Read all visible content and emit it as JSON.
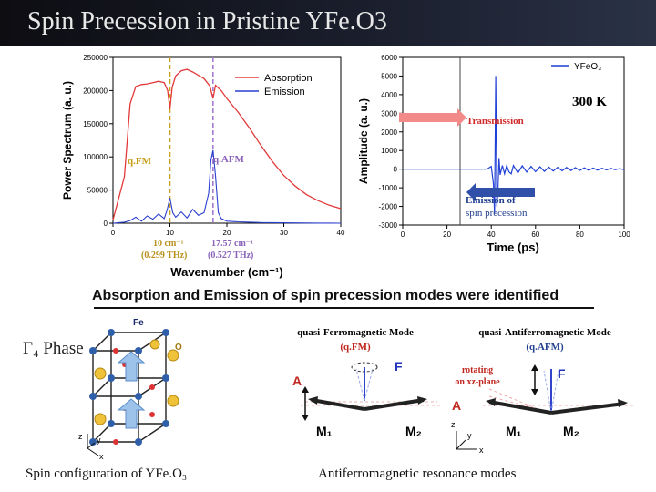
{
  "slide_title": "Spin Precession in Pristine YFe.O3",
  "colors": {
    "absorption": "#e23a3a",
    "emission": "#2a3fcf",
    "qfm": "#c9a21e",
    "qafm": "#a57cd1",
    "yfeo3": "#1f3fd6",
    "transmission": "#f28a8a",
    "emission_arrow": "#2f4fa8"
  },
  "left_chart": {
    "legend": {
      "absorption": "Absorption",
      "emission": "Emission"
    },
    "ylabel": "Power Spectrum (a. u.)",
    "xlabel": "Wavenumber (cm⁻¹)",
    "yticks": [
      "0",
      "50000",
      "100000",
      "150000",
      "200000",
      "250000"
    ],
    "xticks": [
      "0",
      "10",
      "20",
      "30",
      "40"
    ],
    "qfm_label": "q.FM",
    "qafm_label": "q.AFM",
    "qfm_freq1": "10 cm⁻¹",
    "qfm_freq2": "(0.299 THz)",
    "qafm_freq1": "17.57 cm⁻¹",
    "qafm_freq2": "(0.527 THz)"
  },
  "right_chart": {
    "legend": "YFeO₃",
    "temperature": "300 K",
    "ylabel": "Amplitude (a. u.)",
    "xlabel": "Time (ps)",
    "yticks": [
      "-3000",
      "-2000",
      "-1000",
      "0",
      "1000",
      "2000",
      "3000",
      "4000",
      "5000",
      "6000"
    ],
    "xticks": [
      "0",
      "20",
      "40",
      "60",
      "80",
      "100"
    ],
    "transmission_label": "Transmission",
    "emission_label1": "Emission of",
    "emission_label2": "spin precession"
  },
  "chart_data": [
    {
      "type": "line",
      "title": "",
      "xlabel": "Wavenumber (cm⁻¹)",
      "ylabel": "Power Spectrum (a. u.)",
      "xlim": [
        0,
        40
      ],
      "ylim": [
        0,
        250000
      ],
      "series": [
        {
          "name": "Absorption",
          "x": [
            0,
            2,
            3,
            4,
            5,
            6,
            7,
            8,
            9,
            9.6,
            10,
            10.4,
            11,
            12,
            13,
            14,
            15,
            16,
            17,
            17.57,
            18,
            19,
            20,
            22,
            24,
            26,
            28,
            30,
            32,
            34,
            36,
            38,
            40
          ],
          "values": [
            5000,
            70000,
            180000,
            206000,
            209000,
            210000,
            212000,
            214000,
            212000,
            200000,
            172000,
            205000,
            222000,
            230000,
            232000,
            228000,
            223000,
            218000,
            207000,
            188000,
            208000,
            200000,
            188000,
            167000,
            143000,
            117000,
            93000,
            72000,
            56000,
            43000,
            34000,
            27000,
            22000
          ]
        },
        {
          "name": "Emission",
          "x": [
            0,
            2,
            3,
            4,
            5,
            6,
            7,
            8,
            9,
            9.5,
            10,
            10.5,
            11,
            12,
            13,
            14,
            15,
            16,
            16.8,
            17.2,
            17.57,
            18,
            18.5,
            19,
            20,
            22,
            24,
            26,
            28,
            30,
            32,
            34,
            36,
            38,
            40
          ],
          "values": [
            0,
            1500,
            4000,
            9000,
            3000,
            11000,
            6000,
            14000,
            7000,
            20000,
            38000,
            16000,
            9000,
            17000,
            8000,
            21000,
            12000,
            16000,
            45000,
            95000,
            110000,
            72000,
            16000,
            7000,
            3000,
            2000,
            1500,
            1000,
            800,
            500,
            400,
            300,
            200,
            100,
            0
          ]
        }
      ],
      "markers": [
        {
          "label": "q.FM",
          "x": 10
        },
        {
          "label": "q.AFM",
          "x": 17.57
        }
      ]
    },
    {
      "type": "line",
      "title": "",
      "xlabel": "Time (ps)",
      "ylabel": "Amplitude (a. u.)",
      "xlim": [
        0,
        100
      ],
      "ylim": [
        -3000,
        6000
      ],
      "series": [
        {
          "name": "YFeO₃",
          "x": [
            0,
            10,
            20,
            30,
            38,
            40,
            41,
            41.5,
            42,
            42.5,
            43,
            43.5,
            44,
            45,
            46,
            47,
            48,
            49,
            50,
            52,
            54,
            56,
            58,
            60,
            62,
            64,
            66,
            68,
            70,
            72,
            74,
            76,
            78,
            80,
            82,
            84,
            86,
            88,
            90,
            92,
            94,
            96,
            98,
            100
          ],
          "values": [
            0,
            0,
            0,
            0,
            0,
            150,
            -800,
            -2400,
            5000,
            -2000,
            -1200,
            600,
            -300,
            200,
            -250,
            200,
            -150,
            -250,
            200,
            -200,
            180,
            -160,
            150,
            -140,
            130,
            -120,
            110,
            -100,
            100,
            -90,
            90,
            -80,
            80,
            -70,
            70,
            -60,
            60,
            -50,
            50,
            -40,
            40,
            -30,
            30,
            -20
          ]
        }
      ]
    }
  ],
  "summary": "Absorption and Emission of spin precession modes were identified",
  "gamma_phase": "Γ₄ Phase",
  "lattice": {
    "fe_label": "Fe",
    "o_label": "O",
    "axis_x": "x",
    "axis_y": "y",
    "axis_z": "z"
  },
  "diagram": {
    "qfm_title": "quasi-Ferromagnetic Mode",
    "qfm_sub": "(q.FM)",
    "qafm_title": "quasi-Antiferromagnetic Mode",
    "qafm_sub": "(q.AFM)",
    "rotating1": "rotating",
    "rotating2": "on xz-plane",
    "vec_a": "A",
    "vec_f": "F",
    "vec_m1": "M₁",
    "vec_m2": "M₂",
    "axis_x": "x",
    "axis_y": "y",
    "axis_z": "z"
  },
  "caption_left": "Spin configuration of YFe.O₃",
  "caption_right": "Antiferromagnetic resonance modes"
}
